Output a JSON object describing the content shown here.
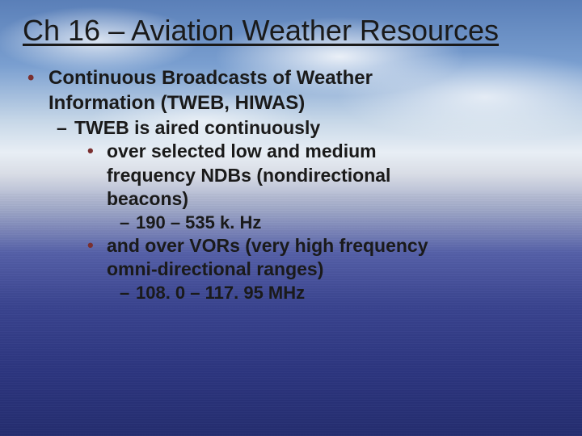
{
  "title_color": "#1a1a1a",
  "text_color": "#1a1a1a",
  "bullet_color": "#7a3030",
  "title": "Ch 16 – Aviation Weather Resources",
  "lvl1_a": "Continuous Broadcasts of Weather",
  "lvl1_b": "Information (TWEB, HIWAS)",
  "lvl2_a": "TWEB is aired continuously",
  "lvl3_a1": "over selected low and medium",
  "lvl3_a2": "frequency NDBs (nondirectional",
  "lvl3_a3": "beacons)",
  "lvl4_a": "190 – 535 k. Hz",
  "lvl3_b1": "and over VORs (very high frequency",
  "lvl3_b2": "omni-directional ranges)",
  "lvl4_b": "108. 0 – 117. 95 MHz"
}
